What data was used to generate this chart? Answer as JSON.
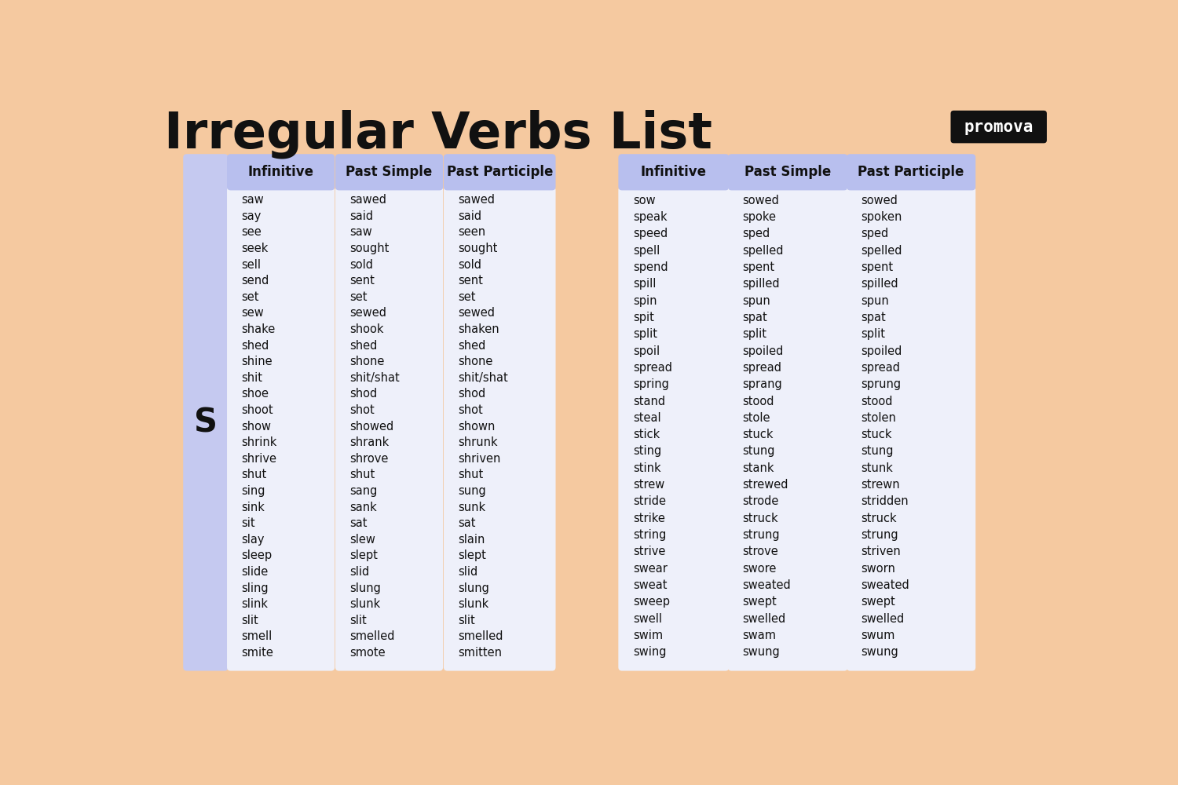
{
  "title": "Irregular Verbs List",
  "bg_color": "#F5C9A0",
  "header_bg": "#B8BFEE",
  "col_body_bg": "#EEF0FA",
  "sidebar_color": "#C5C9F0",
  "text_color": "#111111",
  "logo_bg": "#111111",
  "logo_text": "promova",
  "logo_text_color": "#FFFFFF",
  "headers": [
    "Infinitive",
    "Past Simple",
    "Past Participle"
  ],
  "section_letter": "S",
  "left_table": [
    [
      "saw",
      "sawed",
      "sawed"
    ],
    [
      "say",
      "said",
      "said"
    ],
    [
      "see",
      "saw",
      "seen"
    ],
    [
      "seek",
      "sought",
      "sought"
    ],
    [
      "sell",
      "sold",
      "sold"
    ],
    [
      "send",
      "sent",
      "sent"
    ],
    [
      "set",
      "set",
      "set"
    ],
    [
      "sew",
      "sewed",
      "sewed"
    ],
    [
      "shake",
      "shook",
      "shaken"
    ],
    [
      "shed",
      "shed",
      "shed"
    ],
    [
      "shine",
      "shone",
      "shone"
    ],
    [
      "shit",
      "shit/shat",
      "shit/shat"
    ],
    [
      "shoe",
      "shod",
      "shod"
    ],
    [
      "shoot",
      "shot",
      "shot"
    ],
    [
      "show",
      "showed",
      "shown"
    ],
    [
      "shrink",
      "shrank",
      "shrunk"
    ],
    [
      "shrive",
      "shrove",
      "shriven"
    ],
    [
      "shut",
      "shut",
      "shut"
    ],
    [
      "sing",
      "sang",
      "sung"
    ],
    [
      "sink",
      "sank",
      "sunk"
    ],
    [
      "sit",
      "sat",
      "sat"
    ],
    [
      "slay",
      "slew",
      "slain"
    ],
    [
      "sleep",
      "slept",
      "slept"
    ],
    [
      "slide",
      "slid",
      "slid"
    ],
    [
      "sling",
      "slung",
      "slung"
    ],
    [
      "slink",
      "slunk",
      "slunk"
    ],
    [
      "slit",
      "slit",
      "slit"
    ],
    [
      "smell",
      "smelled",
      "smelled"
    ],
    [
      "smite",
      "smote",
      "smitten"
    ]
  ],
  "right_table": [
    [
      "sow",
      "sowed",
      "sowed"
    ],
    [
      "speak",
      "spoke",
      "spoken"
    ],
    [
      "speed",
      "sped",
      "sped"
    ],
    [
      "spell",
      "spelled",
      "spelled"
    ],
    [
      "spend",
      "spent",
      "spent"
    ],
    [
      "spill",
      "spilled",
      "spilled"
    ],
    [
      "spin",
      "spun",
      "spun"
    ],
    [
      "spit",
      "spat",
      "spat"
    ],
    [
      "split",
      "split",
      "split"
    ],
    [
      "spoil",
      "spoiled",
      "spoiled"
    ],
    [
      "spread",
      "spread",
      "spread"
    ],
    [
      "spring",
      "sprang",
      "sprung"
    ],
    [
      "stand",
      "stood",
      "stood"
    ],
    [
      "steal",
      "stole",
      "stolen"
    ],
    [
      "stick",
      "stuck",
      "stuck"
    ],
    [
      "sting",
      "stung",
      "stung"
    ],
    [
      "stink",
      "stank",
      "stunk"
    ],
    [
      "strew",
      "strewed",
      "strewn"
    ],
    [
      "stride",
      "strode",
      "stridden"
    ],
    [
      "strike",
      "struck",
      "struck"
    ],
    [
      "string",
      "strung",
      "strung"
    ],
    [
      "strive",
      "strove",
      "striven"
    ],
    [
      "swear",
      "swore",
      "sworn"
    ],
    [
      "sweat",
      "sweated",
      "sweated"
    ],
    [
      "sweep",
      "swept",
      "swept"
    ],
    [
      "swell",
      "swelled",
      "swelled"
    ],
    [
      "swim",
      "swam",
      "swum"
    ],
    [
      "swing",
      "swung",
      "swung"
    ]
  ]
}
